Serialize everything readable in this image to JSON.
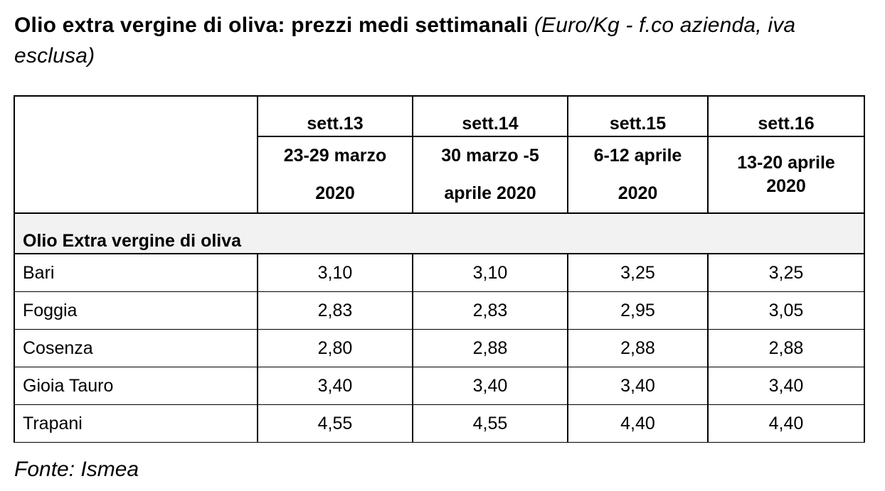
{
  "title": {
    "bold": "Olio extra vergine di oliva: prezzi medi settimanali",
    "italic": "(Euro/Kg - f.co azienda, iva esclusa)"
  },
  "table": {
    "weeks": [
      "sett.13",
      "sett.14",
      "sett.15",
      "sett.16"
    ],
    "dates": [
      {
        "line1": "23-29 marzo",
        "line2": "2020"
      },
      {
        "line1": "30 marzo -5",
        "line2": "aprile 2020"
      },
      {
        "line1": "6-12 aprile",
        "line2": "2020"
      },
      {
        "line1": "13-20 aprile",
        "line2": "2020"
      }
    ],
    "section_label": "Olio Extra vergine di oliva",
    "rows": [
      {
        "name": "Bari",
        "values": [
          "3,10",
          "3,10",
          "3,25",
          "3,25"
        ]
      },
      {
        "name": "Foggia",
        "values": [
          "2,83",
          "2,83",
          "2,95",
          "3,05"
        ]
      },
      {
        "name": "Cosenza",
        "values": [
          "2,80",
          "2,88",
          "2,88",
          "2,88"
        ]
      },
      {
        "name": "Gioia Tauro",
        "values": [
          "3,40",
          "3,40",
          "3,40",
          "3,40"
        ]
      },
      {
        "name": "Trapani",
        "values": [
          "4,55",
          "4,55",
          "4,40",
          "4,40"
        ]
      }
    ]
  },
  "source": "Fonte: Ismea"
}
